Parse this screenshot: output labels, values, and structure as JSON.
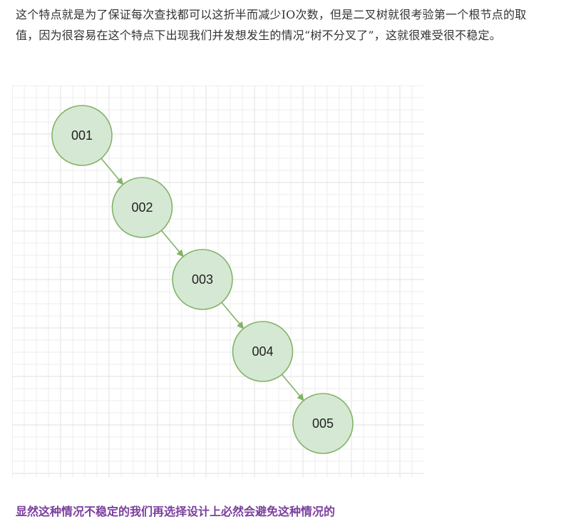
{
  "article": {
    "intro_paragraph": "这个特点就是为了保证每次查找都可以这折半而减少IO次数，但是二叉树就很考验第一个根节点的取值，因为很容易在这个特点下出现我们并发想发生的情况“树不分叉了”，这就很难受很不稳定。",
    "conclusion": "显然这种情况不稳定的我们再选择设计上必然会避免这种情况的"
  },
  "diagram": {
    "nodes": [
      {
        "id": "001",
        "label": "001"
      },
      {
        "id": "002",
        "label": "002"
      },
      {
        "id": "003",
        "label": "003"
      },
      {
        "id": "004",
        "label": "004"
      },
      {
        "id": "005",
        "label": "005"
      }
    ],
    "edges": [
      {
        "from": "001",
        "to": "002"
      },
      {
        "from": "002",
        "to": "003"
      },
      {
        "from": "003",
        "to": "004"
      },
      {
        "from": "004",
        "to": "005"
      }
    ],
    "colors": {
      "node_fill": "#d5e8d4",
      "node_stroke": "#82b366",
      "edge": "#82b366",
      "grid_minor": "#eeeeee",
      "grid_major": "#e2e2e2"
    }
  }
}
